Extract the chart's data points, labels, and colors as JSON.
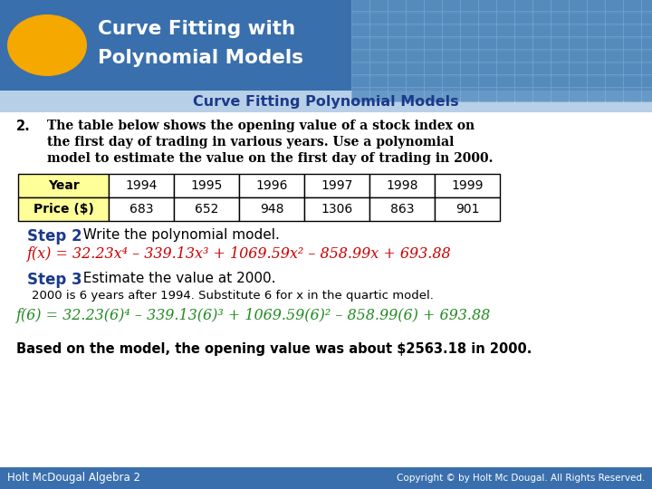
{
  "title_line1": "Curve Fitting with",
  "title_line2": "Polynomial Models",
  "subtitle": "Curve Fitting Polynomial Models",
  "bg_color": "#ffffff",
  "header_bg": "#3a6fad",
  "header_text_color": "#ffffff",
  "subtitle_color": "#1a3a8a",
  "oval_color": "#f5a800",
  "question_text_line1": "The table below shows the opening value of a stock index on",
  "question_text_line2": "the first day of trading in various years. Use a polynomial",
  "question_text_line3": "model to estimate the value on the first day of trading in 2000.",
  "table_headers": [
    "Year",
    "1994",
    "1995",
    "1996",
    "1997",
    "1998",
    "1999"
  ],
  "table_row2": [
    "Price ($)",
    "683",
    "652",
    "948",
    "1306",
    "863",
    "901"
  ],
  "table_header_bg": "#ffff99",
  "step2_label": "Step 2",
  "step2_text": "  Write the polynomial model.",
  "step2_label_color": "#1a3a8a",
  "formula_line": "f(x) = 32.23x⁴ – 339.13x³ + 1069.59x² – 858.99x + 693.88",
  "formula_color": "#cc0000",
  "step3_label": "Step 3",
  "step3_text": "  Estimate the value at 2000.",
  "step3_label_color": "#1a3a8a",
  "step3_sub": "2000 is 6 years after 1994. Substitute 6 for x in the quartic model.",
  "formula2_line": "f(6) = 32.23(6)⁴ – 339.13(6)³ + 1069.59(6)² – 858.99(6) + 693.88",
  "formula2_color": "#228B22",
  "conclusion": "Based on the model, the opening value was about $2563.18 in 2000.",
  "footer_left": "Holt McDougal Algebra 2",
  "footer_right": "Copyright © by Holt Mc Dougal. All Rights Reserved.",
  "footer_bg": "#3a6fad",
  "footer_text_color": "#ffffff",
  "tile_color": "#5a8fc0",
  "tile_edge_color": "#7aafd8"
}
